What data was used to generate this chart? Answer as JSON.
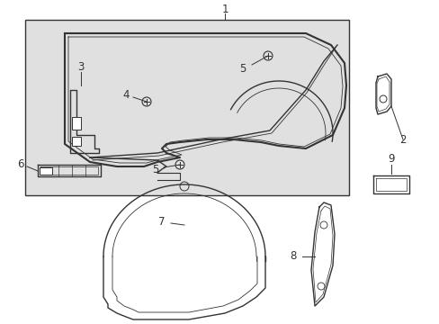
{
  "background_color": "#ffffff",
  "box_bg_color": "#e0e0e0",
  "line_color": "#333333",
  "font_size": 8.5,
  "fig_w": 4.89,
  "fig_h": 3.6,
  "dpi": 100
}
